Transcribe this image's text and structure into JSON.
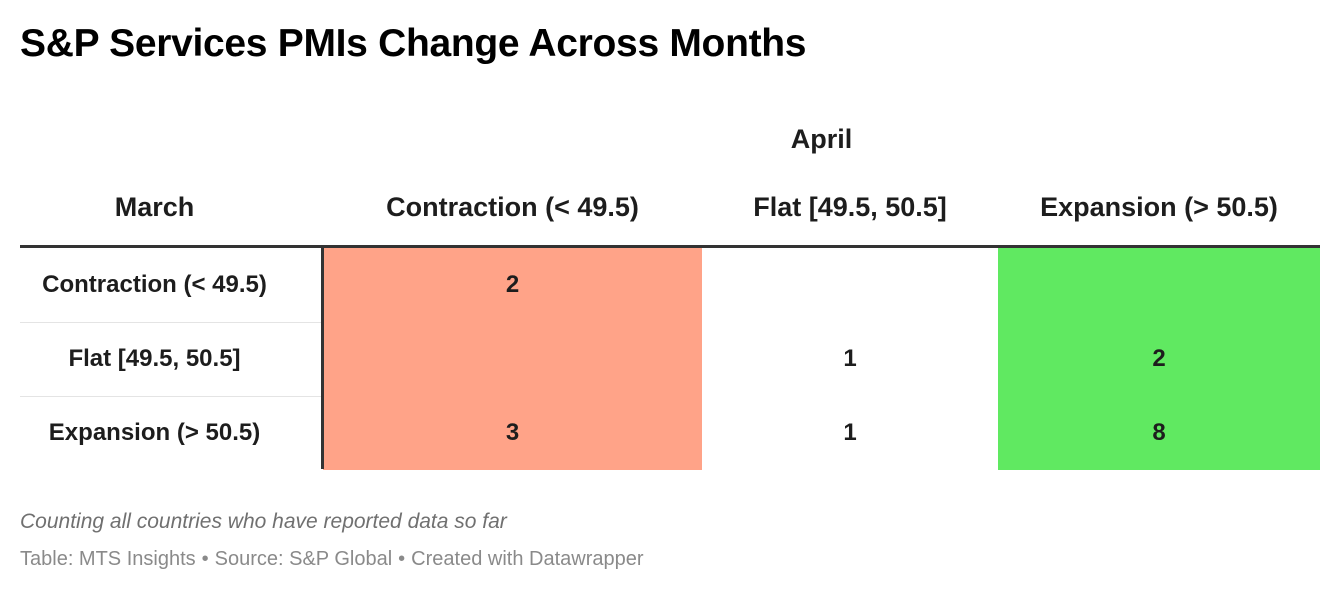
{
  "title": "S&P Services PMIs Change Across Months",
  "note": "Counting all countries who have reported data so far",
  "footer": {
    "table_label": "Table: MTS Insights",
    "source_label": "Source: S&P Global",
    "credit_label": "Created with Datawrapper",
    "separator": "•"
  },
  "colors": {
    "contraction": "#ffa388",
    "flat": "#ffffff",
    "expansion": "#60e961",
    "header_rule": "#333333",
    "row_divider": "#e4e4e4"
  },
  "chart_data": {
    "type": "table",
    "row_header": "March",
    "column_group": "April",
    "columns": [
      "Contraction (< 49.5)",
      "Flat [49.5, 50.5]",
      "Expansion (> 50.5)"
    ],
    "rows": [
      {
        "label": "Contraction (< 49.5)",
        "values": [
          "2",
          "",
          ""
        ]
      },
      {
        "label": "Flat [49.5, 50.5]",
        "values": [
          "",
          "1",
          "2"
        ]
      },
      {
        "label": "Expansion (> 50.5)",
        "values": [
          "3",
          "1",
          "8"
        ]
      }
    ]
  }
}
